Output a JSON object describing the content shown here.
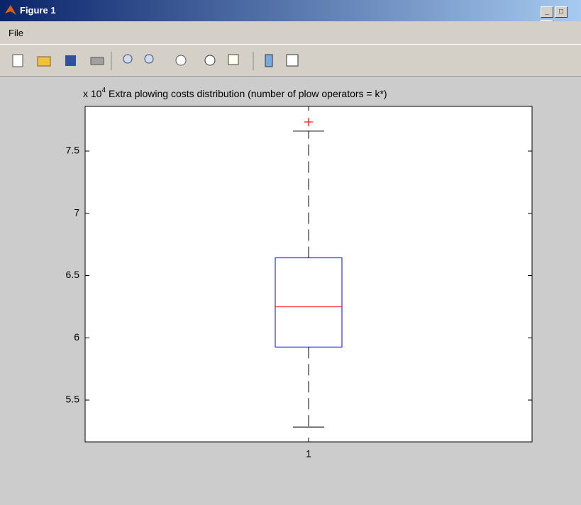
{
  "window": {
    "title": "Figure 1",
    "menu": [
      "File"
    ]
  },
  "chart_data": {
    "type": "box",
    "title": "Extra plowing costs distribution (number of plow operators = k*)",
    "y_scale_label": "x 10",
    "y_scale_exponent": "4",
    "categories": [
      "1"
    ],
    "boxes": [
      {
        "whislo": 5.283,
        "q1": 5.926,
        "med": 6.249,
        "q3": 6.642,
        "whishi": 7.66,
        "fliers": [
          7.734
        ]
      }
    ],
    "box_color": "#0000ff",
    "median_color": "#ff0000",
    "whisker_color": "#000000",
    "flier_color": "#ff0000",
    "xlim": [
      0.5,
      1.5
    ],
    "ylim": [
      5.164,
      7.859
    ],
    "yticks": [
      5.5,
      6,
      6.5,
      7,
      7.5
    ]
  }
}
